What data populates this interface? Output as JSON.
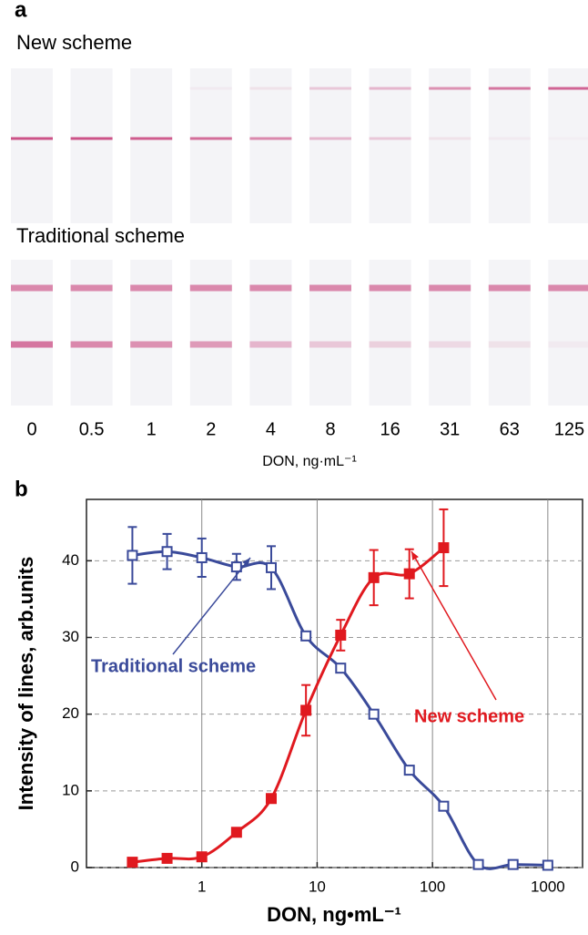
{
  "panel_a": {
    "label": "a",
    "rows": [
      {
        "title": "New scheme"
      },
      {
        "title": "Traditional scheme"
      }
    ],
    "concentrations": [
      "0",
      "0.5",
      "1",
      "2",
      "4",
      "8",
      "16",
      "31",
      "63",
      "125"
    ],
    "xlabel": "DON, ng·mL⁻¹"
  },
  "chart_data": {
    "type": "scatter",
    "panel_label": "b",
    "xlabel": "DON, ng•mL⁻¹",
    "ylabel": "Intensity of lines, arb.units",
    "xscale": "log",
    "xlim": [
      0.1,
      2000
    ],
    "xticks": [
      1,
      10,
      100,
      1000
    ],
    "ylim": [
      0,
      48
    ],
    "yticks": [
      0,
      10,
      20,
      30,
      40
    ],
    "grid": true,
    "series": [
      {
        "name": "Traditional scheme",
        "color": "#3a4a9a",
        "marker": "open-square",
        "x": [
          0.25,
          0.5,
          1,
          2,
          4,
          8,
          16,
          31,
          63,
          125,
          250,
          500,
          1000
        ],
        "values": [
          40.7,
          41.2,
          40.4,
          39.2,
          39.1,
          30.2,
          26,
          20,
          12.7,
          8,
          0.4,
          0.4,
          0.3
        ],
        "errors": [
          3.7,
          2.3,
          2.5,
          1.7,
          2.8,
          null,
          null,
          null,
          null,
          null,
          null,
          null,
          null
        ]
      },
      {
        "name": "New scheme",
        "color": "#e0191f",
        "marker": "filled-square",
        "x": [
          0.25,
          0.5,
          1,
          2,
          4,
          8,
          16,
          31,
          63,
          125
        ],
        "values": [
          0.7,
          1.2,
          1.4,
          4.6,
          9,
          20.5,
          30.3,
          37.8,
          38.3,
          41.7
        ],
        "errors": [
          null,
          null,
          null,
          null,
          null,
          3.3,
          2,
          3.6,
          3.2,
          5
        ]
      }
    ]
  }
}
